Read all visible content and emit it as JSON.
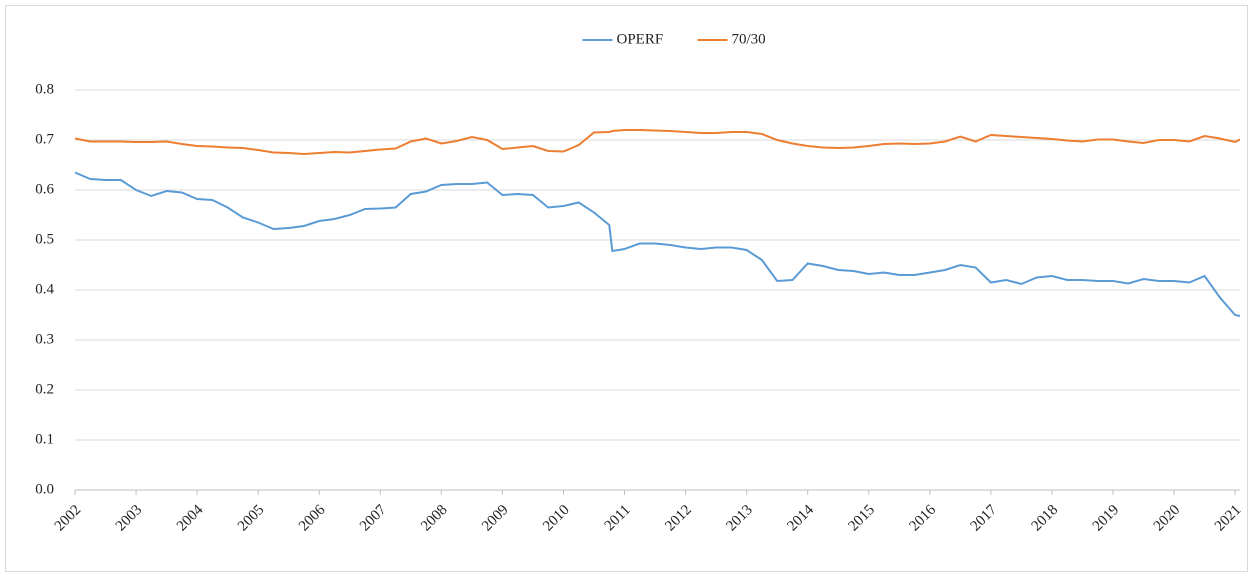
{
  "chart_data": {
    "type": "line",
    "x": [
      2002,
      2002.25,
      2002.5,
      2002.75,
      2003,
      2003.25,
      2003.5,
      2003.75,
      2004,
      2004.25,
      2004.5,
      2004.75,
      2005,
      2005.25,
      2005.5,
      2005.75,
      2006,
      2006.25,
      2006.5,
      2006.75,
      2007,
      2007.25,
      2007.5,
      2007.75,
      2008,
      2008.25,
      2008.5,
      2008.75,
      2009,
      2009.25,
      2009.5,
      2009.75,
      2010,
      2010.25,
      2010.5,
      2010.75,
      2010.8,
      2011,
      2011.25,
      2011.5,
      2011.75,
      2012,
      2012.25,
      2012.5,
      2012.75,
      2013,
      2013.25,
      2013.5,
      2013.75,
      2014,
      2014.25,
      2014.5,
      2014.75,
      2015,
      2015.25,
      2015.5,
      2015.75,
      2016,
      2016.25,
      2016.5,
      2016.75,
      2017,
      2017.25,
      2017.5,
      2017.75,
      2018,
      2018.25,
      2018.5,
      2018.75,
      2019,
      2019.25,
      2019.5,
      2019.75,
      2020,
      2020.25,
      2020.5,
      2020.75,
      2021,
      2021.08
    ],
    "series": [
      {
        "name": "OPERF",
        "color": "#5b9bd5",
        "values": [
          0.635,
          0.622,
          0.62,
          0.62,
          0.6,
          0.588,
          0.598,
          0.595,
          0.582,
          0.58,
          0.565,
          0.545,
          0.535,
          0.522,
          0.524,
          0.528,
          0.538,
          0.542,
          0.55,
          0.562,
          0.563,
          0.565,
          0.592,
          0.597,
          0.61,
          0.612,
          0.612,
          0.615,
          0.59,
          0.592,
          0.59,
          0.565,
          0.568,
          0.575,
          0.555,
          0.53,
          0.478,
          0.482,
          0.493,
          0.493,
          0.49,
          0.485,
          0.482,
          0.485,
          0.485,
          0.48,
          0.46,
          0.418,
          0.42,
          0.453,
          0.448,
          0.44,
          0.438,
          0.432,
          0.435,
          0.43,
          0.43,
          0.435,
          0.44,
          0.45,
          0.445,
          0.415,
          0.42,
          0.412,
          0.425,
          0.428,
          0.42,
          0.42,
          0.418,
          0.418,
          0.413,
          0.422,
          0.418,
          0.418,
          0.415,
          0.428,
          0.385,
          0.35,
          0.348
        ]
      },
      {
        "name": "70/30",
        "color": "#ed7d31",
        "values": [
          0.703,
          0.697,
          0.697,
          0.697,
          0.696,
          0.696,
          0.697,
          0.692,
          0.688,
          0.687,
          0.685,
          0.684,
          0.68,
          0.675,
          0.674,
          0.672,
          0.674,
          0.676,
          0.675,
          0.678,
          0.681,
          0.683,
          0.697,
          0.703,
          0.693,
          0.698,
          0.706,
          0.7,
          0.682,
          0.685,
          0.688,
          0.678,
          0.677,
          0.69,
          0.715,
          0.716,
          0.718,
          0.72,
          0.72,
          0.719,
          0.718,
          0.716,
          0.714,
          0.714,
          0.716,
          0.716,
          0.712,
          0.7,
          0.693,
          0.688,
          0.685,
          0.684,
          0.685,
          0.688,
          0.692,
          0.693,
          0.692,
          0.693,
          0.697,
          0.707,
          0.697,
          0.71,
          0.708,
          0.706,
          0.704,
          0.702,
          0.699,
          0.697,
          0.701,
          0.701,
          0.697,
          0.694,
          0.7,
          0.7,
          0.697,
          0.708,
          0.703,
          0.696,
          0.701
        ]
      }
    ],
    "xlim": [
      2002,
      2021.08
    ],
    "xticks": [
      2002,
      2003,
      2004,
      2005,
      2006,
      2007,
      2008,
      2009,
      2010,
      2011,
      2012,
      2013,
      2014,
      2015,
      2016,
      2017,
      2018,
      2019,
      2020,
      2021
    ],
    "ylim": [
      0,
      0.8
    ],
    "yticks": [
      {
        "value": 0,
        "label": "0.0"
      },
      0.1,
      0.2,
      0.3,
      0.4,
      0.5,
      0.6,
      0.7,
      0.8
    ],
    "grid": true,
    "legend": "top"
  }
}
